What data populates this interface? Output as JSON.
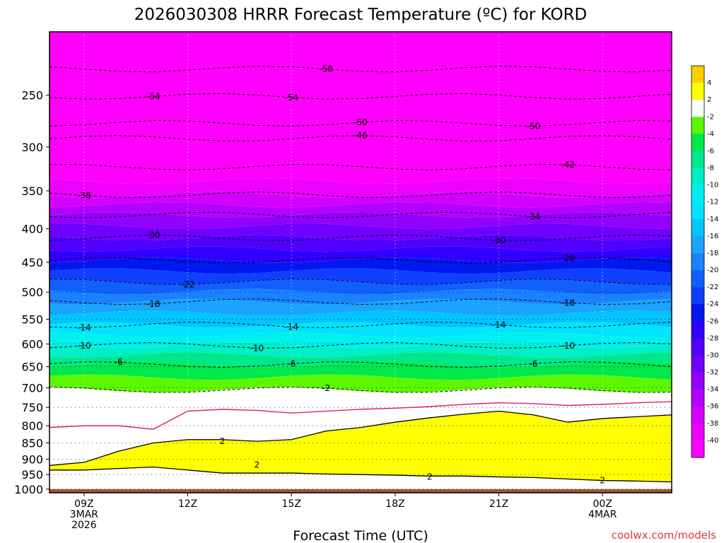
{
  "chart_data": {
    "type": "heatmap",
    "title": "2026030308 HRRR Forecast Temperature (ºC) for KORD",
    "xlabel": "Forecast Time (UTC)",
    "ylabel": "",
    "credit": "coolwx.com/models",
    "y_scale": "log-pressure",
    "ylim_hPa": [
      1013,
      200
    ],
    "x_ticks": [
      {
        "x": 0,
        "lines": [
          "09Z",
          "3MAR",
          "2026"
        ]
      },
      {
        "x": 3,
        "lines": [
          "12Z"
        ]
      },
      {
        "x": 6,
        "lines": [
          "15Z"
        ]
      },
      {
        "x": 9,
        "lines": [
          "18Z"
        ]
      },
      {
        "x": 12,
        "lines": [
          "21Z"
        ]
      },
      {
        "x": 15,
        "lines": [
          "00Z",
          "4MAR"
        ]
      }
    ],
    "xlim_hours_after_09Z": [
      -1,
      17
    ],
    "y_ticks_hPa": [
      250,
      300,
      350,
      400,
      450,
      500,
      550,
      600,
      650,
      700,
      750,
      800,
      850,
      900,
      950,
      1000
    ],
    "time_hours_after_09Z": [
      -1,
      0,
      1,
      2,
      3,
      4,
      5,
      6,
      7,
      8,
      9,
      10,
      11,
      12,
      13,
      14,
      15,
      16,
      17
    ],
    "grid": "dotted",
    "colorbar": {
      "ticks": [
        "4",
        "2",
        "-2",
        "-4",
        "-6",
        "-8",
        "-10",
        "-12",
        "-14",
        "-16",
        "-18",
        "-20",
        "-22",
        "-24",
        "-26",
        "-28",
        "-30",
        "-32",
        "-34",
        "-36",
        "-38",
        "-40"
      ],
      "colors": {
        "above_4": "#ffcc00",
        "2_to_4": "#ffff00",
        "-2_to_2": "#ffffff",
        "-4_to_-2": "#5cf700",
        "-6_to_-4": "#00e84b",
        "-8_to_-6": "#00e88a",
        "-10_to_-8": "#00eec8",
        "-12_to_-10": "#00f0ee",
        "-14_to_-12": "#00e4ff",
        "-16_to_-14": "#00c4ff",
        "-18_to_-16": "#1aa4ff",
        "-20_to_-18": "#1a82ff",
        "-22_to_-20": "#1060ff",
        "-24_to_-22": "#1040ff",
        "-26_to_-24": "#0018f0",
        "-28_to_-26": "#3000ff",
        "-30_to_-28": "#5000ff",
        "-32_to_-30": "#7000ff",
        "-34_to_-32": "#9200ff",
        "-36_to_-34": "#b400ff",
        "-38_to_-36": "#d400ff",
        "-40_to_-38": "#ee00ff",
        "below_-40": "#ff00ff"
      }
    },
    "ground_color": "#a0522d",
    "isotherms_shown": [
      {
        "value": -58,
        "pressure_hPa": 228,
        "labels_at_hours": [
          7
        ]
      },
      {
        "value": -54,
        "pressure_hPa": 251,
        "labels_at_hours": [
          2,
          6
        ]
      },
      {
        "value": -50,
        "pressure_hPa": 276,
        "labels_at_hours": [
          8,
          13
        ]
      },
      {
        "value": -46,
        "pressure_hPa": 291,
        "labels_at_hours": [
          8
        ]
      },
      {
        "value": -42,
        "pressure_hPa": 322,
        "labels_at_hours": [
          14
        ]
      },
      {
        "value": -38,
        "pressure_hPa": 355,
        "labels_at_hours": [
          0
        ]
      },
      {
        "value": -34,
        "pressure_hPa": 381,
        "labels_at_hours": [
          13
        ]
      },
      {
        "value": -30,
        "pressure_hPa": 413,
        "labels_at_hours": [
          2,
          12
        ]
      },
      {
        "value": -26,
        "pressure_hPa": 447,
        "labels_at_hours": [
          14
        ]
      },
      {
        "value": -22,
        "pressure_hPa": 482,
        "labels_at_hours": [
          3
        ]
      },
      {
        "value": -18,
        "pressure_hPa": 517,
        "labels_at_hours": [
          2,
          14
        ]
      },
      {
        "value": -14,
        "pressure_hPa": 561,
        "labels_at_hours": [
          0,
          6,
          12
        ]
      },
      {
        "value": -10,
        "pressure_hPa": 603,
        "labels_at_hours": [
          0,
          5,
          14
        ]
      },
      {
        "value": -6,
        "pressure_hPa": 645,
        "labels_at_hours": [
          1,
          6,
          13
        ]
      },
      {
        "value": -2,
        "pressure_hPa": 705,
        "labels_at_hours": [
          7
        ]
      },
      {
        "value": 2,
        "pressure_hPa": 845,
        "labels_at_hours": [
          4
        ]
      },
      {
        "value": 2,
        "pressure_hPa": 918,
        "labels_at_hours": [
          5
        ]
      },
      {
        "value": 2,
        "pressure_hPa": 958,
        "labels_at_hours": [
          10
        ]
      },
      {
        "value": 2,
        "pressure_hPa": 970,
        "labels_at_hours": [
          15
        ]
      }
    ],
    "freezing_line_0C": {
      "time_hours_after_09Z": [
        -1,
        0,
        1,
        2,
        3,
        4,
        5,
        6,
        7,
        8,
        9,
        10,
        11,
        12,
        13,
        14,
        15,
        16,
        17
      ],
      "pressure_hPa": [
        805,
        800,
        800,
        810,
        760,
        755,
        758,
        765,
        760,
        755,
        752,
        748,
        742,
        738,
        740,
        745,
        742,
        738,
        735
      ]
    },
    "warm_region_2C": {
      "top_pressure_hPa": [
        920,
        910,
        875,
        850,
        840,
        840,
        845,
        840,
        815,
        805,
        790,
        778,
        768,
        760,
        770,
        790,
        780,
        775,
        770
      ],
      "bottom_pressure_hPa": [
        935,
        935,
        930,
        925,
        935,
        945,
        945,
        945,
        948,
        950,
        952,
        955,
        955,
        958,
        960,
        965,
        970,
        972,
        975
      ]
    }
  }
}
